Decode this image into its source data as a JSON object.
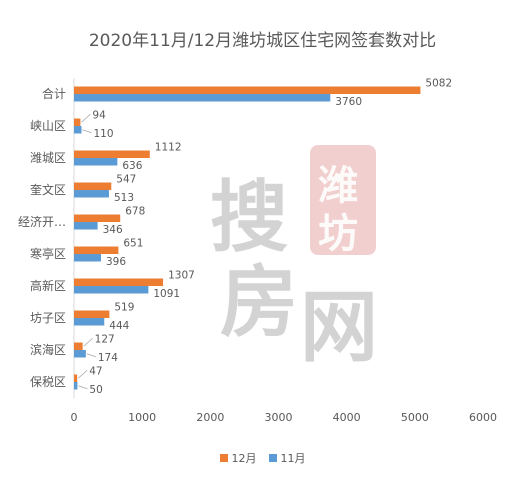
{
  "chart_data": {
    "type": "bar",
    "orientation": "horizontal",
    "title": "2020年11月/12月潍坊城区住宅网签套数对比",
    "categories": [
      "合计",
      "峡山区",
      "潍城区",
      "奎文区",
      "经济开…",
      "寒亭区",
      "高新区",
      "坊子区",
      "滨海区",
      "保税区"
    ],
    "series": [
      {
        "name": "12月",
        "color": "#ED7D31",
        "values": [
          5082,
          94,
          1112,
          547,
          678,
          651,
          1307,
          519,
          127,
          47
        ]
      },
      {
        "name": "11月",
        "color": "#5B9BD5",
        "values": [
          3760,
          110,
          636,
          513,
          346,
          396,
          1091,
          444,
          174,
          50
        ]
      }
    ],
    "xlim": [
      0,
      6000
    ],
    "xticks": [
      "0",
      "1000",
      "2000",
      "3000",
      "4000",
      "5000",
      "6000"
    ],
    "legend_position": "bottom",
    "grid": false
  },
  "watermark": {
    "brand_chars": [
      "搜",
      "房",
      "网"
    ],
    "seal_chars": [
      "潍",
      "坊"
    ]
  },
  "colors": {
    "axis": "#D9D9D9",
    "text": "#595959"
  }
}
